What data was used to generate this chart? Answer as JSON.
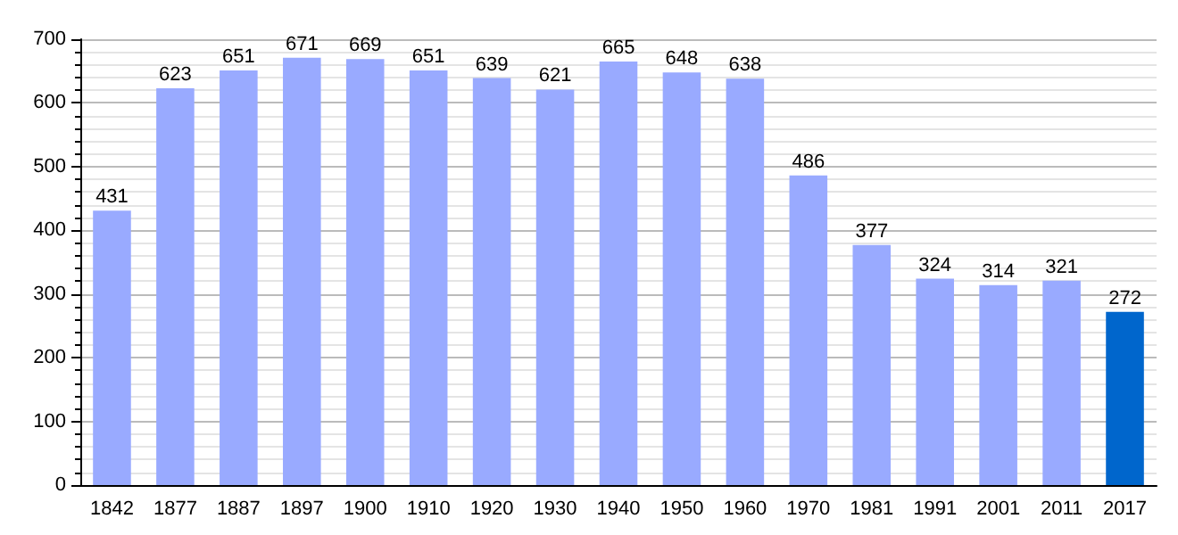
{
  "chart_data": {
    "type": "bar",
    "categories": [
      "1842",
      "1877",
      "1887",
      "1897",
      "1900",
      "1910",
      "1920",
      "1930",
      "1940",
      "1950",
      "1960",
      "1970",
      "1981",
      "1991",
      "2001",
      "2011",
      "2017"
    ],
    "values": [
      431,
      623,
      651,
      671,
      669,
      651,
      639,
      621,
      665,
      648,
      638,
      486,
      377,
      324,
      314,
      321,
      272
    ],
    "colors": [
      "#99aaff",
      "#99aaff",
      "#99aaff",
      "#99aaff",
      "#99aaff",
      "#99aaff",
      "#99aaff",
      "#99aaff",
      "#99aaff",
      "#99aaff",
      "#99aaff",
      "#99aaff",
      "#99aaff",
      "#99aaff",
      "#99aaff",
      "#99aaff",
      "#0066cc"
    ],
    "ylim": [
      0,
      700
    ],
    "yticks": [
      0,
      100,
      200,
      300,
      400,
      500,
      600,
      700
    ],
    "grid": "y",
    "data_labels": true
  }
}
